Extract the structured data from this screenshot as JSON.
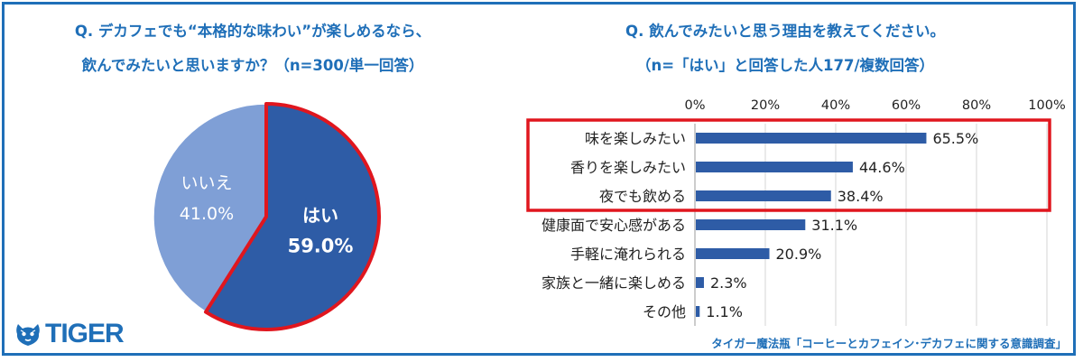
{
  "left_question": {
    "line1": "Q. デカフェでも“本格的な味わい”が楽しめるなら、",
    "line2": "飲んでみたいと思いますか？（n=300/単一回答）"
  },
  "right_question": {
    "line1": "Q. 飲んでみたいと思う理由を教えてください。",
    "line2": "（n=「はい」と回答した人177/複数回答）"
  },
  "colors": {
    "accent": "#1f6fb8",
    "bar": "#2e5ca6",
    "pie_yes": "#2e5ca6",
    "pie_no": "#7f9fd6",
    "highlight": "#e0161e"
  },
  "logo": {
    "text": "TIGER",
    "icon": "tiger-face-icon"
  },
  "footer": {
    "source": "タイガー魔法瓶「コーヒーとカフェイン･デカフェに関する意識調査」"
  },
  "chart_data": [
    {
      "type": "pie",
      "labels": [
        "はい",
        "いいえ"
      ],
      "values": [
        59.0,
        41.0
      ],
      "value_labels": [
        "59.0%",
        "41.0%"
      ],
      "highlighted": "はい"
    },
    {
      "type": "bar",
      "orientation": "horizontal",
      "categories": [
        "味を楽しみたい",
        "香りを楽しみたい",
        "夜でも飲める",
        "健康面で安心感がある",
        "手軽に淹れられる",
        "家族と一緒に楽しめる",
        "その他"
      ],
      "values": [
        65.5,
        44.6,
        38.4,
        31.1,
        20.9,
        2.3,
        1.1
      ],
      "value_labels": [
        "65.5%",
        "44.6%",
        "38.4%",
        "31.1%",
        "20.9%",
        "2.3%",
        "1.1%"
      ],
      "xlim": [
        0,
        100
      ],
      "ticks": [
        "0%",
        "20%",
        "40%",
        "60%",
        "80%",
        "100%"
      ],
      "axis_position": "top",
      "gridlines": true,
      "highlighted_categories": [
        "味を楽しみたい",
        "香りを楽しみたい",
        "夜でも飲める"
      ]
    }
  ]
}
